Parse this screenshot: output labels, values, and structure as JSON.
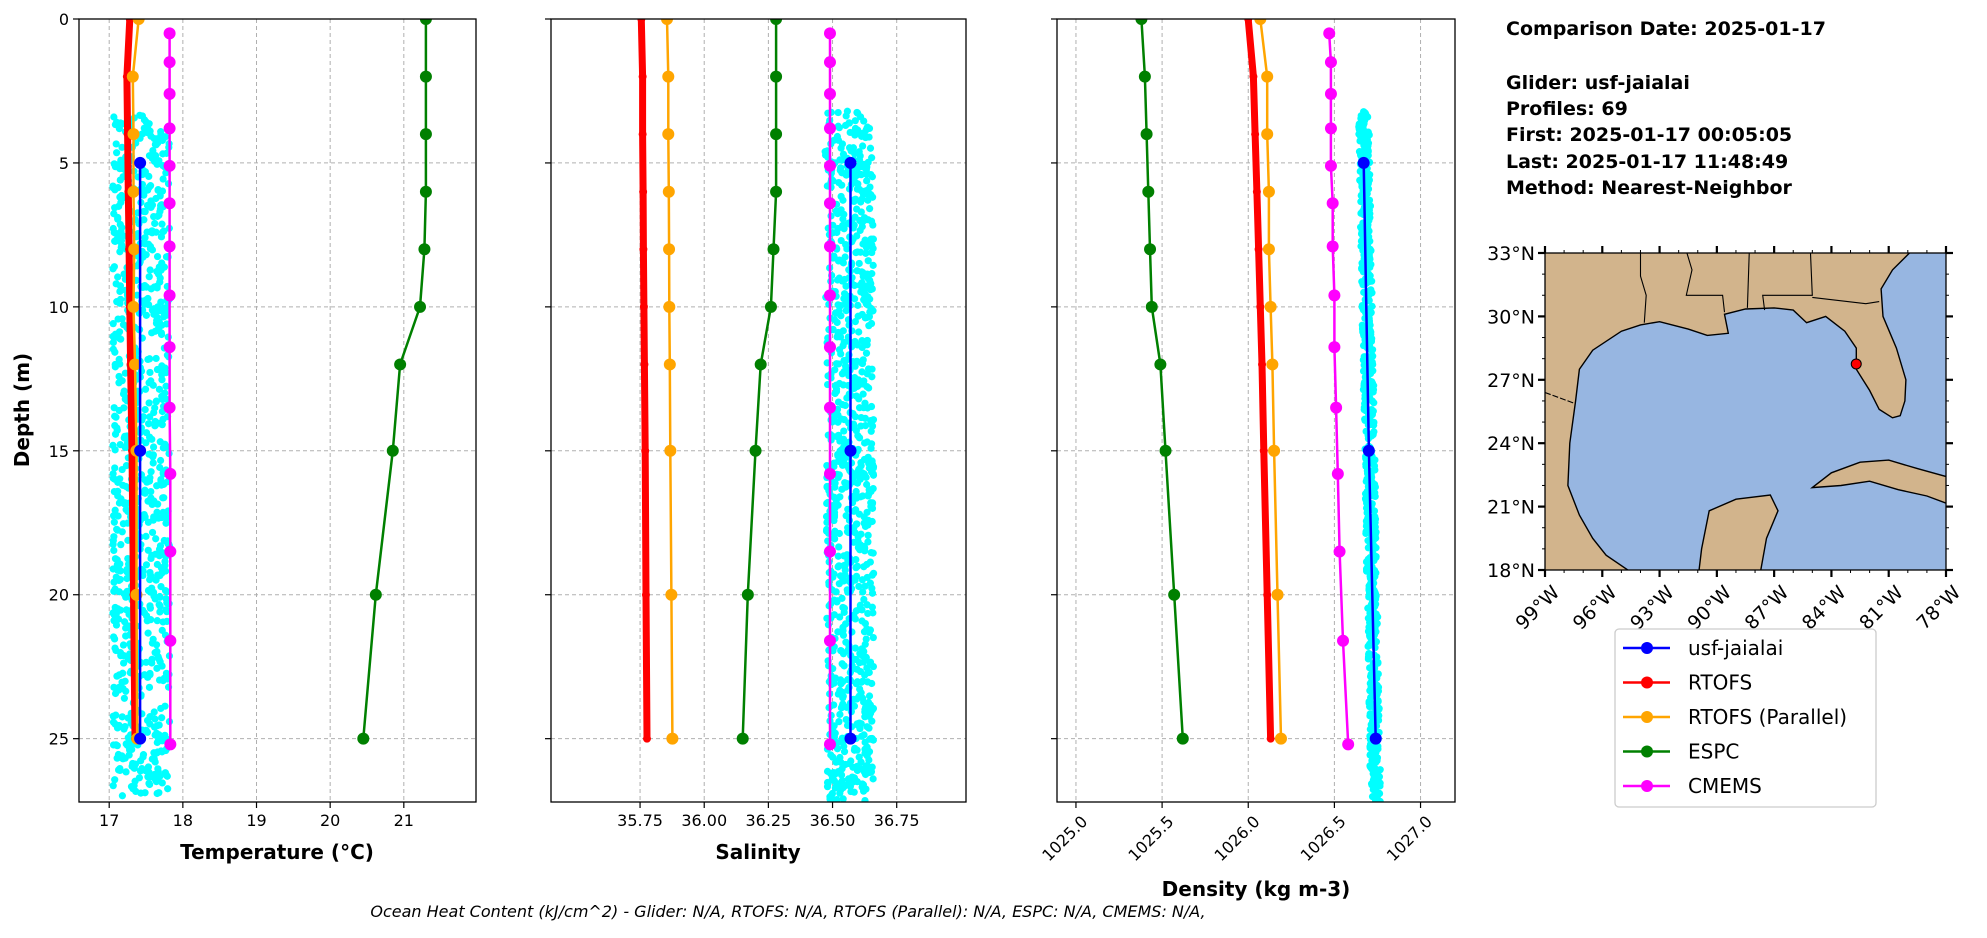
{
  "chart_data": [
    {
      "type": "line",
      "panel": "temperature",
      "xlabel": "Temperature (°C)",
      "ylabel": "Depth (m)",
      "xlim": [
        16.59,
        21.98
      ],
      "ylim": [
        27.2,
        0
      ],
      "xticks": [
        "17",
        "18",
        "19",
        "20",
        "21"
      ],
      "yticks": [
        "0",
        "5",
        "10",
        "15",
        "20",
        "25"
      ],
      "grid": true,
      "series": [
        {
          "name": "RTOFS",
          "depth": [
            0,
            2,
            4,
            6,
            8,
            10,
            12,
            15,
            20,
            25
          ],
          "values": [
            17.28,
            17.24,
            17.25,
            17.26,
            17.27,
            17.28,
            17.29,
            17.31,
            17.33,
            17.35
          ]
        },
        {
          "name": "RTOFS (Parallel)",
          "depth": [
            0,
            2,
            4,
            6,
            8,
            10,
            12,
            15,
            20,
            25
          ],
          "values": [
            17.4,
            17.32,
            17.33,
            17.33,
            17.34,
            17.33,
            17.35,
            17.37,
            17.37,
            17.38
          ]
        },
        {
          "name": "ESPC",
          "depth": [
            0,
            2,
            4,
            6,
            8,
            10,
            12,
            15,
            20,
            25
          ],
          "values": [
            21.3,
            21.3,
            21.3,
            21.3,
            21.28,
            21.22,
            20.95,
            20.85,
            20.62,
            20.45
          ]
        },
        {
          "name": "CMEMS",
          "depth": [
            0.5,
            1.5,
            2.6,
            3.8,
            5.1,
            6.4,
            7.9,
            9.6,
            11.4,
            13.5,
            15.8,
            18.5,
            21.6,
            25.2
          ],
          "values": [
            17.82,
            17.82,
            17.82,
            17.82,
            17.82,
            17.82,
            17.82,
            17.82,
            17.82,
            17.82,
            17.83,
            17.83,
            17.83,
            17.83
          ]
        },
        {
          "name": "usf-jaialai",
          "depth": [
            5,
            15,
            25
          ],
          "values": [
            17.42,
            17.42,
            17.42
          ]
        }
      ],
      "scatter": {
        "name": "glider profiles",
        "depth_range": [
          3.3,
          27.0
        ],
        "value_top": [
          17.05,
          17.82
        ],
        "value_bottom": [
          17.05,
          17.82
        ],
        "count": 900
      }
    },
    {
      "type": "line",
      "panel": "salinity",
      "xlabel": "Salinity",
      "xlim": [
        35.403,
        37.02
      ],
      "ylim": [
        27.2,
        0
      ],
      "xticks": [
        "35.75",
        "36.00",
        "36.25",
        "36.50",
        "36.75"
      ],
      "grid": true,
      "series": [
        {
          "name": "RTOFS",
          "depth": [
            0,
            2,
            4,
            6,
            8,
            10,
            12,
            15,
            20,
            25
          ],
          "values": [
            35.755,
            35.76,
            35.76,
            35.762,
            35.763,
            35.765,
            35.767,
            35.77,
            35.773,
            35.777
          ]
        },
        {
          "name": "RTOFS (Parallel)",
          "depth": [
            0,
            2,
            4,
            6,
            8,
            10,
            12,
            15,
            20,
            25
          ],
          "values": [
            35.855,
            35.86,
            35.86,
            35.862,
            35.863,
            35.864,
            35.866,
            35.868,
            35.872,
            35.876
          ]
        },
        {
          "name": "ESPC",
          "depth": [
            0,
            2,
            4,
            6,
            8,
            10,
            12,
            15,
            20,
            25
          ],
          "values": [
            36.28,
            36.28,
            36.28,
            36.28,
            36.27,
            36.26,
            36.22,
            36.2,
            36.17,
            36.15
          ]
        },
        {
          "name": "CMEMS",
          "depth": [
            0.5,
            1.5,
            2.6,
            3.8,
            5.1,
            6.4,
            7.9,
            9.6,
            11.4,
            13.5,
            15.8,
            18.5,
            21.6,
            25.2
          ],
          "values": [
            36.49,
            36.49,
            36.49,
            36.49,
            36.49,
            36.49,
            36.49,
            36.49,
            36.49,
            36.49,
            36.49,
            36.49,
            36.49,
            36.49
          ]
        },
        {
          "name": "usf-jaialai",
          "depth": [
            5,
            15,
            25
          ],
          "values": [
            36.57,
            36.57,
            36.57
          ]
        }
      ],
      "scatter": {
        "name": "glider profiles",
        "depth_range": [
          3.2,
          27.2
        ],
        "value_top": [
          36.47,
          36.66
        ],
        "value_bottom": [
          36.48,
          36.66
        ],
        "count": 900
      }
    },
    {
      "type": "line",
      "panel": "density",
      "xlabel": "Density (kg m-3)",
      "xlim": [
        1024.89,
        1027.2
      ],
      "ylim": [
        27.2,
        0
      ],
      "xticks": [
        "1025.0",
        "1025.5",
        "1026.0",
        "1026.5",
        "1027.0"
      ],
      "grid": true,
      "series": [
        {
          "name": "RTOFS",
          "depth": [
            0,
            2,
            4,
            6,
            8,
            10,
            12,
            15,
            20,
            25
          ],
          "values": [
            1026.0,
            1026.03,
            1026.04,
            1026.05,
            1026.06,
            1026.07,
            1026.08,
            1026.09,
            1026.11,
            1026.13
          ]
        },
        {
          "name": "RTOFS (Parallel)",
          "depth": [
            0,
            2,
            4,
            6,
            8,
            10,
            12,
            15,
            20,
            25
          ],
          "values": [
            1026.07,
            1026.11,
            1026.11,
            1026.12,
            1026.12,
            1026.13,
            1026.14,
            1026.15,
            1026.17,
            1026.19
          ]
        },
        {
          "name": "ESPC",
          "depth": [
            0,
            2,
            4,
            6,
            8,
            10,
            12,
            15,
            20,
            25
          ],
          "values": [
            1025.38,
            1025.4,
            1025.41,
            1025.42,
            1025.43,
            1025.44,
            1025.49,
            1025.52,
            1025.57,
            1025.62
          ]
        },
        {
          "name": "CMEMS",
          "depth": [
            0.5,
            1.5,
            2.6,
            3.8,
            5.1,
            6.4,
            7.9,
            9.6,
            11.4,
            13.5,
            15.8,
            18.5,
            21.6,
            25.2
          ],
          "values": [
            1026.47,
            1026.48,
            1026.48,
            1026.48,
            1026.48,
            1026.49,
            1026.49,
            1026.5,
            1026.5,
            1026.51,
            1026.52,
            1026.53,
            1026.55,
            1026.58
          ]
        },
        {
          "name": "usf-jaialai",
          "depth": [
            5,
            15,
            25
          ],
          "values": [
            1026.67,
            1026.7,
            1026.74
          ]
        }
      ],
      "scatter": {
        "name": "glider profiles",
        "depth_range": [
          3.2,
          27.2
        ],
        "value_top": [
          1026.64,
          1026.7
        ],
        "value_bottom": [
          1026.71,
          1026.77
        ],
        "count": 700
      }
    }
  ],
  "colors": {
    "usf-jaialai": "#0000ff",
    "RTOFS": "#ff0000",
    "RTOFS (Parallel)": "#ffa500",
    "ESPC": "#008000",
    "CMEMS": "#ff00ff",
    "scatter": "#00ffff",
    "land": "#d2b48c",
    "ocean": "#97b6e1",
    "grid": "#b0b0b0"
  },
  "info": {
    "comparison_date": "Comparison Date: 2025-01-17",
    "glider": "Glider: usf-jaialai",
    "profiles": "Profiles: 69",
    "first": "First: 2025-01-17 00:05:05",
    "last": "Last: 2025-01-17 11:48:49",
    "method": "Method: Nearest-Neighbor"
  },
  "map": {
    "lon_range": [
      -99,
      -78
    ],
    "lat_range": [
      18,
      33
    ],
    "lat_ticks": [
      "18°N",
      "21°N",
      "24°N",
      "27°N",
      "30°N",
      "33°N"
    ],
    "lon_ticks": [
      "99°W",
      "96°W",
      "93°W",
      "90°W",
      "87°W",
      "84°W",
      "81°W",
      "78°W"
    ],
    "glider_position": {
      "lon": -82.7,
      "lat": 27.75
    }
  },
  "legend": {
    "placement": "below-map",
    "entries": [
      "usf-jaialai",
      "RTOFS",
      "RTOFS (Parallel)",
      "ESPC",
      "CMEMS"
    ]
  },
  "footer": "Ocean Heat Content (kJ/cm^2) - Glider: N/A,  RTOFS: N/A,  RTOFS (Parallel): N/A,  ESPC: N/A,  CMEMS: N/A,"
}
